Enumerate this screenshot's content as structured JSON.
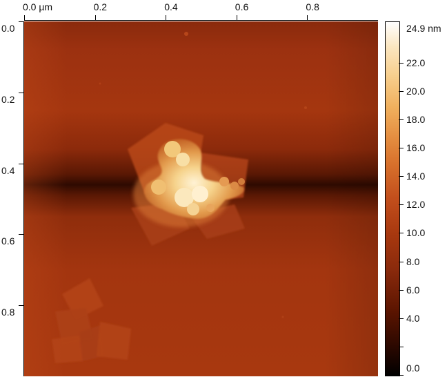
{
  "x_axis": {
    "tick_labels": [
      "0.0 µm",
      "0.2",
      "0.4",
      "0.6",
      "0.8"
    ],
    "tick_values": [
      0.0,
      0.2,
      0.4,
      0.6,
      0.8
    ],
    "range": [
      0.0,
      1.0
    ]
  },
  "y_axis": {
    "tick_labels": [
      "0.0",
      "0.2",
      "0.4",
      "0.6",
      "0.8"
    ],
    "tick_values": [
      0.0,
      0.2,
      0.4,
      0.6,
      0.8
    ],
    "range": [
      0.0,
      1.0
    ]
  },
  "colorbar": {
    "top_label": "24.9 nm",
    "tick_labels": [
      "22.0",
      "20.0",
      "18.0",
      "16.0",
      "14.0",
      "12.0",
      "10.0",
      "8.0",
      "6.0",
      "4.0",
      "0.0"
    ],
    "tick_values": [
      22.0,
      20.0,
      18.0,
      16.0,
      14.0,
      12.0,
      10.0,
      8.0,
      6.0,
      4.0,
      0.0
    ],
    "range": [
      0.0,
      24.9
    ],
    "colormap": [
      "#000000",
      "#5a1400",
      "#a8380f",
      "#d8712c",
      "#f0b05e",
      "#fbe6c0",
      "#ffffff"
    ]
  },
  "colors": {
    "background_substrate": "#a5340f",
    "dark_band": "#3a0c02",
    "particle_cluster": "#f5d88e"
  }
}
